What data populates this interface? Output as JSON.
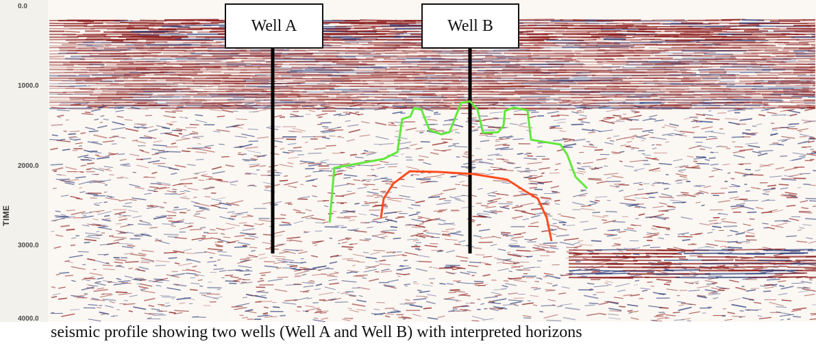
{
  "figure": {
    "y_axis": {
      "label": "TIME",
      "ticks": [
        "0.0",
        "1000.0",
        "2000.0",
        "3000.0",
        "4000.0"
      ]
    },
    "wells": [
      {
        "label": "Well A"
      },
      {
        "label": "Well B"
      }
    ],
    "horizons": [
      {
        "color": "#5fe83a",
        "meaning": "green outline"
      },
      {
        "color": "#ff4a1c",
        "meaning": "red arc"
      }
    ],
    "palette": {
      "seismic_red": "#8b1a1a",
      "seismic_blue": "#2a3a7a",
      "background": "#fbf7f2"
    }
  },
  "caption": {
    "text": "seismic profile showing two wells (Well A and Well B) with interpreted horizons"
  }
}
